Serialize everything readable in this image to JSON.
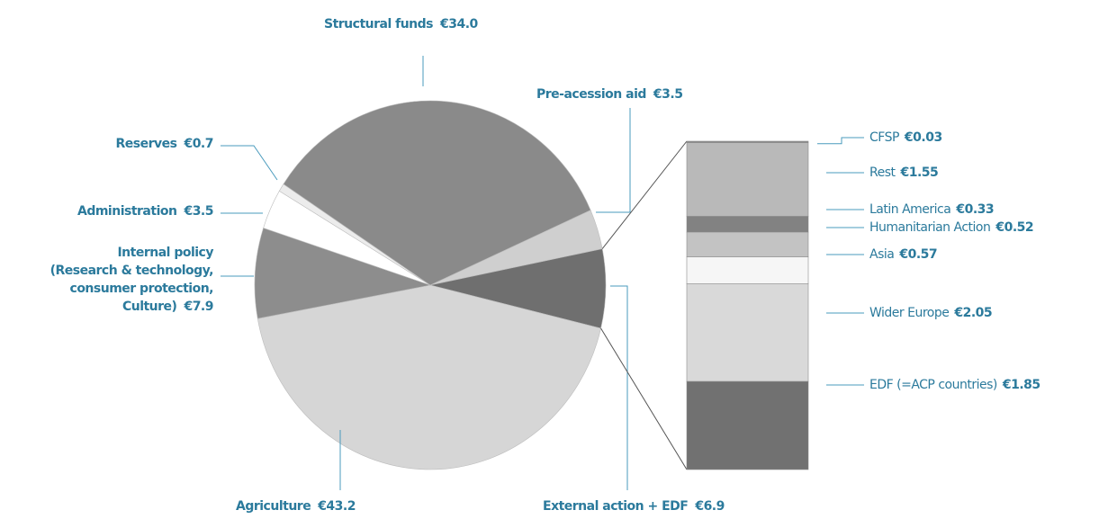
{
  "chart_data": {
    "type": "pie",
    "categories": [
      "Pre-acession aid",
      "External action + EDF",
      "Agriculture",
      "Internal policy\n(Research & technology,\nconsumer protection,\nCulture)",
      "Administration",
      "Reserves",
      "Structural funds"
    ],
    "values": [
      3.5,
      6.9,
      43.2,
      7.9,
      3.5,
      0.7,
      34.0
    ],
    "value_labels": [
      "€3.5",
      "€6.9",
      "€43.2",
      "€7.9",
      "€3.5",
      "€0.7",
      "€34.0"
    ],
    "colors": [
      "#cfcfcf",
      "#6f6f6f",
      "#d6d6d6",
      "#8d8d8d",
      "#ffffff",
      "#ececec",
      "#8a8a8a"
    ],
    "breakdown": {
      "type": "stacked_bar",
      "categories": [
        "CFSP",
        "Rest",
        "Latin America",
        "Humanitarian Action",
        "Asia",
        "Wider Europe",
        "EDF (=ACP countries)"
      ],
      "values": [
        0.03,
        1.55,
        0.33,
        0.52,
        0.57,
        2.05,
        1.85
      ],
      "value_labels": [
        "€0.03",
        "€1.55",
        "€0.33",
        "€0.52",
        "€0.57",
        "€2.05",
        "€1.85"
      ],
      "colors": [
        "#8a8a8a",
        "#b9b9b9",
        "#828282",
        "#c3c3c3",
        "#f6f6f6",
        "#d9d9d9",
        "#717171"
      ]
    }
  }
}
